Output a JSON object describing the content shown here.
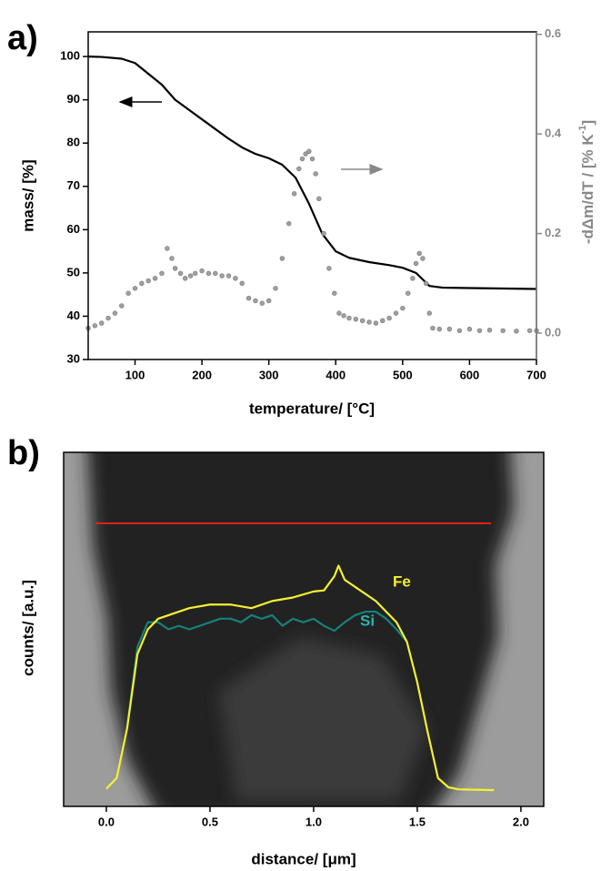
{
  "panel_labels": [
    "a)",
    "b)"
  ],
  "chart_data": [
    {
      "type": "line",
      "xlabel": "temperature/ [°C]",
      "ylabel": "mass/ [%]",
      "y2label": {
        "main": "-dΔm/dT / [% K",
        "sup": "-1",
        "end": "]"
      },
      "xlim": [
        30,
        700
      ],
      "xticks": [
        100,
        200,
        300,
        400,
        500,
        600,
        700
      ],
      "ylim": [
        30,
        105.7
      ],
      "yticks": [
        30,
        40,
        50,
        60,
        70,
        80,
        90,
        100
      ],
      "y2lim": [
        -0.053,
        0.605
      ],
      "y2ticks": [
        {
          "value": 0,
          "label": "0.0"
        },
        0.2,
        0.4,
        0.6
      ],
      "axis_color": "#000000",
      "y2_color": "#888888",
      "series": [
        {
          "style": "line",
          "color": "#000000",
          "x": [
            30,
            50,
            80,
            100,
            120,
            140,
            160,
            200,
            240,
            260,
            280,
            300,
            320,
            340,
            360,
            380,
            400,
            420,
            450,
            480,
            500,
            520,
            540,
            560,
            600,
            650,
            700
          ],
          "values": [
            100,
            99.9,
            99.5,
            98.5,
            96,
            93.5,
            90,
            85.5,
            81,
            79,
            77.5,
            76.5,
            75,
            72,
            66,
            59,
            55,
            53.5,
            52.5,
            51.8,
            51.2,
            50,
            47,
            46.6,
            46.5,
            46.4,
            46.3
          ]
        },
        {
          "style": "dots",
          "color": "#a0a0a0",
          "axis": "y2",
          "x": [
            30,
            40,
            50,
            60,
            70,
            80,
            90,
            100,
            110,
            120,
            130,
            140,
            148,
            155,
            160,
            168,
            175,
            183,
            190,
            200,
            210,
            220,
            230,
            240,
            250,
            260,
            270,
            280,
            290,
            300,
            310,
            320,
            330,
            338,
            345,
            350,
            355,
            360,
            365,
            370,
            375,
            382,
            390,
            398,
            405,
            412,
            420,
            430,
            440,
            450,
            460,
            470,
            480,
            490,
            500,
            508,
            515,
            520,
            525,
            530,
            535,
            540,
            545,
            555,
            570,
            585,
            600,
            615,
            630,
            650,
            670,
            690,
            700
          ],
          "values": [
            0.01,
            0.015,
            0.02,
            0.03,
            0.04,
            0.055,
            0.08,
            0.09,
            0.1,
            0.105,
            0.11,
            0.12,
            0.17,
            0.15,
            0.13,
            0.12,
            0.11,
            0.115,
            0.12,
            0.125,
            0.12,
            0.12,
            0.115,
            0.115,
            0.11,
            0.1,
            0.07,
            0.065,
            0.06,
            0.065,
            0.09,
            0.15,
            0.22,
            0.28,
            0.33,
            0.35,
            0.36,
            0.365,
            0.35,
            0.32,
            0.27,
            0.2,
            0.13,
            0.08,
            0.04,
            0.035,
            0.03,
            0.028,
            0.025,
            0.022,
            0.02,
            0.025,
            0.03,
            0.04,
            0.05,
            0.08,
            0.11,
            0.14,
            0.16,
            0.15,
            0.1,
            0.04,
            0.01,
            0.008,
            0.008,
            0.005,
            0.008,
            0.005,
            0.006,
            0.005,
            0.004,
            0.005,
            0.005
          ]
        }
      ]
    },
    {
      "type": "line",
      "xlabel": "distance/ [μm]",
      "ylabel": "counts/ [a.u.]",
      "xlim": [
        -0.206,
        2.11
      ],
      "xticks": [
        {
          "value": 0,
          "label": "0.0"
        },
        0.5,
        {
          "value": 1,
          "label": "1.0"
        },
        1.5,
        {
          "value": 2,
          "label": "2.0"
        }
      ],
      "ylim": [
        0,
        100
      ],
      "axis_color": "#000000",
      "series": [
        {
          "name": "Si",
          "style": "line",
          "color": "#17807a",
          "x": [
            0.1,
            0.15,
            0.2,
            0.25,
            0.3,
            0.35,
            0.4,
            0.45,
            0.5,
            0.55,
            0.6,
            0.65,
            0.7,
            0.75,
            0.8,
            0.85,
            0.9,
            0.95,
            1.0,
            1.05,
            1.1,
            1.15,
            1.2,
            1.25,
            1.3,
            1.35,
            1.4,
            1.45
          ],
          "values": [
            22,
            45,
            52,
            52,
            50,
            51,
            50,
            51,
            52,
            53,
            53,
            52,
            54,
            53,
            54,
            51,
            53,
            52,
            53,
            51,
            49.6,
            52,
            54,
            55,
            55,
            53,
            50,
            46.5
          ]
        },
        {
          "name": "Fe",
          "style": "line",
          "color": "#f5f032",
          "x": [
            0,
            0.05,
            0.1,
            0.15,
            0.2,
            0.25,
            0.3,
            0.4,
            0.5,
            0.6,
            0.7,
            0.8,
            0.9,
            1.0,
            1.05,
            1.1,
            1.12,
            1.15,
            1.2,
            1.3,
            1.4,
            1.45,
            1.5,
            1.55,
            1.6,
            1.65,
            1.7,
            1.87
          ],
          "values": [
            5,
            8,
            22,
            43,
            50,
            53,
            54,
            56,
            57,
            57,
            56,
            58,
            59,
            60.7,
            61,
            65,
            68,
            64,
            62,
            58,
            52,
            46.5,
            35,
            21,
            8,
            5.4,
            4.8,
            4.6
          ]
        }
      ]
    }
  ]
}
